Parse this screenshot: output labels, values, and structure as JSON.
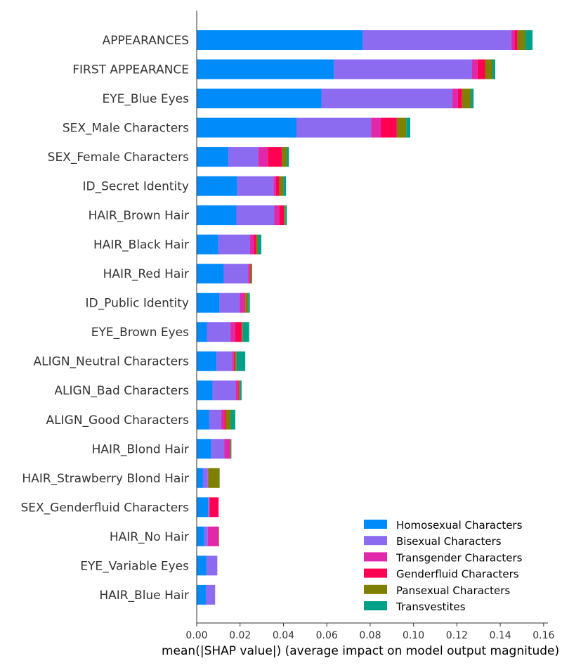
{
  "chart_data": {
    "type": "bar",
    "orientation": "horizontal",
    "stacked": true,
    "xlabel": "mean(|SHAP value|) (average impact on model output magnitude)",
    "xlim": [
      0,
      0.162
    ],
    "xticks": [
      "0.00",
      "0.02",
      "0.04",
      "0.06",
      "0.08",
      "0.10",
      "0.12",
      "0.14",
      "0.16"
    ],
    "xtick_values": [
      0,
      0.02,
      0.04,
      0.06,
      0.08,
      0.1,
      0.12,
      0.14,
      0.16
    ],
    "grid": false,
    "legend_position": "bottom-right",
    "categories": [
      "APPEARANCES",
      "FIRST APPEARANCE",
      "EYE_Blue Eyes",
      "SEX_Male Characters",
      "SEX_Female Characters",
      "ID_Secret Identity",
      "HAIR_Brown Hair",
      "HAIR_Black Hair",
      "HAIR_Red Hair",
      "ID_Public Identity",
      "EYE_Brown Eyes",
      "ALIGN_Neutral Characters",
      "ALIGN_Bad Characters",
      "ALIGN_Good Characters",
      "HAIR_Blond Hair",
      "HAIR_Strawberry Blond Hair",
      "SEX_Genderfluid Characters",
      "HAIR_No Hair",
      "EYE_Variable Eyes",
      "HAIR_Blue Hair"
    ],
    "series": [
      {
        "name": "Homosexual Characters",
        "color": "#008bfb",
        "values": [
          0.0766,
          0.0633,
          0.0575,
          0.046,
          0.0147,
          0.0187,
          0.0183,
          0.01,
          0.0125,
          0.0105,
          0.0047,
          0.0091,
          0.0073,
          0.0058,
          0.0067,
          0.0029,
          0.0052,
          0.0035,
          0.0045,
          0.0042
        ]
      },
      {
        "name": "Bisexual Characters",
        "color": "#8c6bf0",
        "values": [
          0.0685,
          0.0637,
          0.0604,
          0.0344,
          0.0137,
          0.0167,
          0.0175,
          0.0145,
          0.0112,
          0.0092,
          0.0108,
          0.0072,
          0.0107,
          0.0055,
          0.0061,
          0.0022,
          0.0006,
          0.0016,
          0.005,
          0.0043
        ]
      },
      {
        "name": "Transgender Characters",
        "color": "#e128aa",
        "values": [
          0.0015,
          0.0025,
          0.0026,
          0.0045,
          0.0044,
          0.0012,
          0.0022,
          0.0019,
          0.0008,
          0.0024,
          0.0023,
          0.0008,
          0.001,
          0.0014,
          0.0024,
          0.0002,
          0.0001,
          0.0048,
          0.0,
          0.0
        ]
      },
      {
        "name": "Genderfluid Characters",
        "color": "#ff0052",
        "values": [
          0.0014,
          0.0035,
          0.0019,
          0.0074,
          0.0065,
          0.0015,
          0.0022,
          0.001,
          0.0003,
          0.0003,
          0.0029,
          0.0005,
          0.0004,
          0.0007,
          0.0002,
          0.0,
          0.0042,
          0.0002,
          0.0,
          0.0
        ]
      },
      {
        "name": "Pansexual Characters",
        "color": "#7f7f00",
        "values": [
          0.0035,
          0.0034,
          0.004,
          0.0043,
          0.0023,
          0.0019,
          0.0007,
          0.0008,
          0.0006,
          0.0013,
          0.0006,
          0.0008,
          0.0006,
          0.0023,
          0.0004,
          0.0052,
          0.0,
          0.0002,
          0.0,
          0.0
        ]
      },
      {
        "name": "Transvestites",
        "color": "#009f88",
        "values": [
          0.0034,
          0.0013,
          0.0013,
          0.0019,
          0.0009,
          0.0012,
          0.0007,
          0.0016,
          0.0002,
          0.0008,
          0.0029,
          0.004,
          0.0007,
          0.0021,
          0.0002,
          0.0001,
          0.0,
          0.0,
          0.0,
          0.0
        ]
      }
    ]
  }
}
